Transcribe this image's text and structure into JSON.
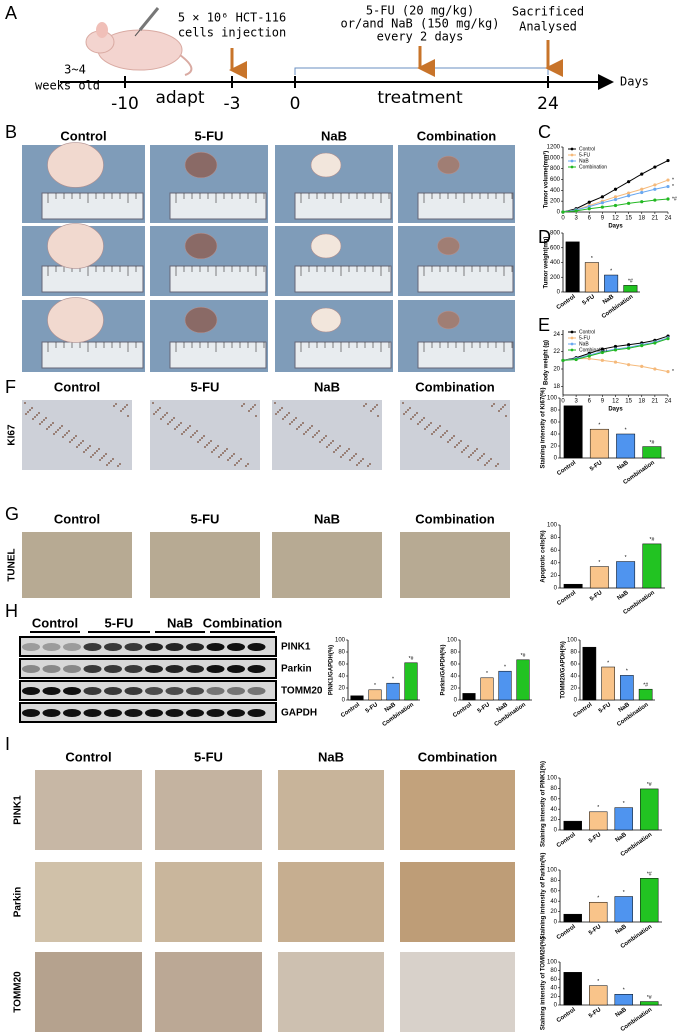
{
  "figure": {
    "panel_labels": [
      "A",
      "B",
      "C",
      "D",
      "E",
      "F",
      "G",
      "H",
      "I"
    ],
    "timeline": {
      "start_label": [
        "3~4",
        "weeks old"
      ],
      "ticks": [
        -10,
        -3,
        0,
        24
      ],
      "phase_labels": [
        "adapt",
        "treatment"
      ],
      "axis_label": "Days",
      "injection": [
        "5 × 10⁶ HCT-116",
        "cells injection"
      ],
      "dosing": [
        "5-FU (20 mg/kg)",
        "or/and NaB (150 mg/kg)",
        "every 2 days"
      ],
      "endpoint": [
        "Sacrificed",
        "Analysed"
      ]
    },
    "groups_b": [
      "Control",
      "5-FU",
      "NaB",
      "Combination"
    ],
    "groups_f": [
      "Control",
      "5-FU",
      "NaB",
      "Combination"
    ],
    "groups_g": [
      "Control",
      "5-FU",
      "NaB",
      "Combination"
    ],
    "groups_h": [
      "Control",
      "5-FU",
      "NaB",
      "Combination"
    ],
    "groups_i": [
      "Control",
      "5-FU",
      "NaB",
      "Combination"
    ],
    "stain_labels": [
      "KI67",
      "TUNEL"
    ],
    "blot_labels": [
      "PINK1",
      "Parkin",
      "TOMM20",
      "GAPDH"
    ],
    "ihc_rows": [
      "PINK1",
      "Parkin",
      "TOMM20"
    ]
  },
  "charts": [
    {
      "type": "line",
      "ylabel": "Tumor volume(mm³)",
      "xlabel": "Days",
      "x": [
        0,
        3,
        6,
        9,
        12,
        15,
        18,
        21,
        24
      ],
      "xlim": [
        0,
        24
      ],
      "xticks": [
        0,
        3,
        6,
        9,
        12,
        15,
        18,
        21,
        24
      ],
      "ylim": [
        0,
        1200
      ],
      "yticks": [
        0,
        200,
        400,
        600,
        800,
        1000,
        1200
      ],
      "series": [
        {
          "name": "Control",
          "color": "#000000",
          "values": [
            0,
            60,
            180,
            280,
            420,
            560,
            700,
            830,
            950
          ]
        },
        {
          "name": "5-FU",
          "color": "#f5b97a",
          "values": [
            0,
            40,
            120,
            200,
            280,
            350,
            420,
            500,
            590
          ],
          "annotation": "*"
        },
        {
          "name": "NaB",
          "color": "#6aa8f0",
          "values": [
            0,
            40,
            100,
            170,
            230,
            300,
            360,
            420,
            470
          ],
          "annotation": "*"
        },
        {
          "name": "Combination",
          "color": "#22b822",
          "values": [
            0,
            20,
            60,
            90,
            120,
            160,
            190,
            220,
            240
          ],
          "annotation": "*#"
        }
      ]
    },
    {
      "type": "bar",
      "ylabel": "Tumor weight(mg)",
      "categories": [
        "Control",
        "5-FU",
        "NaB",
        "Combination"
      ],
      "values": [
        680,
        400,
        230,
        90
      ],
      "colors": [
        "#000000",
        "#f9c48a",
        "#4f94ef",
        "#22c322"
      ],
      "annotations": [
        null,
        "*",
        "*",
        "*#"
      ],
      "ylim": [
        0,
        800
      ],
      "yticks": [
        0,
        200,
        400,
        600,
        800
      ]
    },
    {
      "type": "line",
      "ylabel": "Body weight (g)",
      "xlabel": "Days",
      "x": [
        0,
        3,
        6,
        9,
        12,
        15,
        18,
        21,
        24
      ],
      "xlim": [
        0,
        24
      ],
      "xticks": [
        0,
        3,
        6,
        9,
        12,
        15,
        18,
        21,
        24
      ],
      "ylim": [
        17,
        24.5
      ],
      "yticks": [
        18,
        20,
        22,
        24
      ],
      "series": [
        {
          "name": "Control",
          "color": "#000000",
          "values": [
            21,
            21.3,
            21.8,
            22.3,
            22.6,
            22.8,
            23,
            23.3,
            23.8
          ]
        },
        {
          "name": "5-FU",
          "color": "#f5b97a",
          "values": [
            21,
            21.2,
            21.2,
            21,
            20.8,
            20.5,
            20.3,
            20,
            19.7
          ],
          "annotation": "*"
        },
        {
          "name": "NaB",
          "color": "#6aa8f0",
          "values": [
            21,
            21.2,
            21.6,
            22,
            22.3,
            22.5,
            22.8,
            23.1,
            23.6
          ]
        },
        {
          "name": "Combination",
          "color": "#22b822",
          "values": [
            21,
            21.1,
            21.5,
            21.9,
            22.2,
            22.4,
            22.7,
            23,
            23.5
          ]
        }
      ]
    },
    {
      "type": "bar",
      "ylabel": "Staining intensity of Ki67(%)",
      "categories": [
        "Control",
        "5-FU",
        "NaB",
        "Combination"
      ],
      "values": [
        87,
        48,
        40,
        19
      ],
      "colors": [
        "#000000",
        "#f9c48a",
        "#4f94ef",
        "#22c322"
      ],
      "annotations": [
        null,
        "*",
        "*",
        "*#"
      ],
      "ylim": [
        0,
        100
      ],
      "yticks": [
        0,
        20,
        40,
        60,
        80,
        100
      ]
    },
    {
      "type": "bar",
      "ylabel": "Apoptotic cells(%)",
      "categories": [
        "Control",
        "5-FU",
        "NaB",
        "Combination"
      ],
      "values": [
        6,
        34,
        42,
        70
      ],
      "colors": [
        "#000000",
        "#f9c48a",
        "#4f94ef",
        "#22c322"
      ],
      "annotations": [
        null,
        "*",
        "*",
        "*#"
      ],
      "ylim": [
        0,
        100
      ],
      "yticks": [
        0,
        20,
        40,
        60,
        80,
        100
      ]
    },
    {
      "type": "bar",
      "ylabel": "PINK1/GAPDH(%)",
      "categories": [
        "Control",
        "5-FU",
        "NaB",
        "Combination"
      ],
      "values": [
        7,
        17,
        28,
        62
      ],
      "colors": [
        "#000000",
        "#f9c48a",
        "#4f94ef",
        "#22c322"
      ],
      "annotations": [
        null,
        "*",
        "*",
        "*#"
      ],
      "ylim": [
        0,
        100
      ],
      "yticks": [
        0,
        20,
        40,
        60,
        80,
        100
      ]
    },
    {
      "type": "bar",
      "ylabel": "Parkin/GAPDH(%)",
      "categories": [
        "Control",
        "5-FU",
        "NaB",
        "Combination"
      ],
      "values": [
        11,
        37,
        48,
        67
      ],
      "colors": [
        "#000000",
        "#f9c48a",
        "#4f94ef",
        "#22c322"
      ],
      "annotations": [
        null,
        "*",
        "*",
        "*#"
      ],
      "ylim": [
        0,
        100
      ],
      "yticks": [
        0,
        20,
        40,
        60,
        80,
        100
      ]
    },
    {
      "type": "bar",
      "ylabel": "TOMM20/GAPDH(%)",
      "categories": [
        "Control",
        "5-FU",
        "NaB",
        "Combination"
      ],
      "values": [
        88,
        55,
        41,
        18
      ],
      "colors": [
        "#000000",
        "#f9c48a",
        "#4f94ef",
        "#22c322"
      ],
      "annotations": [
        null,
        "*",
        "*",
        "*#"
      ],
      "ylim": [
        0,
        100
      ],
      "yticks": [
        0,
        20,
        40,
        60,
        80,
        100
      ]
    },
    {
      "type": "bar",
      "ylabel": "Staining intensity of PINK1(%)",
      "categories": [
        "Control",
        "5-FU",
        "NaB",
        "Combination"
      ],
      "values": [
        17,
        35,
        43,
        79
      ],
      "colors": [
        "#000000",
        "#f9c48a",
        "#4f94ef",
        "#22c322"
      ],
      "annotations": [
        null,
        "*",
        "*",
        "*#"
      ],
      "ylim": [
        0,
        100
      ],
      "yticks": [
        0,
        20,
        40,
        60,
        80,
        100
      ]
    },
    {
      "type": "bar",
      "ylabel": "Staining intensity of Parkin(%)",
      "categories": [
        "Control",
        "5-FU",
        "NaB",
        "Combination"
      ],
      "values": [
        15,
        38,
        49,
        84
      ],
      "colors": [
        "#000000",
        "#f9c48a",
        "#4f94ef",
        "#22c322"
      ],
      "annotations": [
        null,
        "*",
        "*",
        "*#"
      ],
      "ylim": [
        0,
        100
      ],
      "yticks": [
        0,
        20,
        40,
        60,
        80,
        100
      ]
    },
    {
      "type": "bar",
      "ylabel": "Staining intensity of TOMM20(%)",
      "categories": [
        "Control",
        "5-FU",
        "NaB",
        "Combination"
      ],
      "values": [
        76,
        45,
        25,
        8
      ],
      "colors": [
        "#000000",
        "#f9c48a",
        "#4f94ef",
        "#22c322"
      ],
      "annotations": [
        null,
        "*",
        "*",
        "*#"
      ],
      "ylim": [
        0,
        100
      ],
      "yticks": [
        0,
        20,
        40,
        60,
        80,
        100
      ]
    }
  ]
}
